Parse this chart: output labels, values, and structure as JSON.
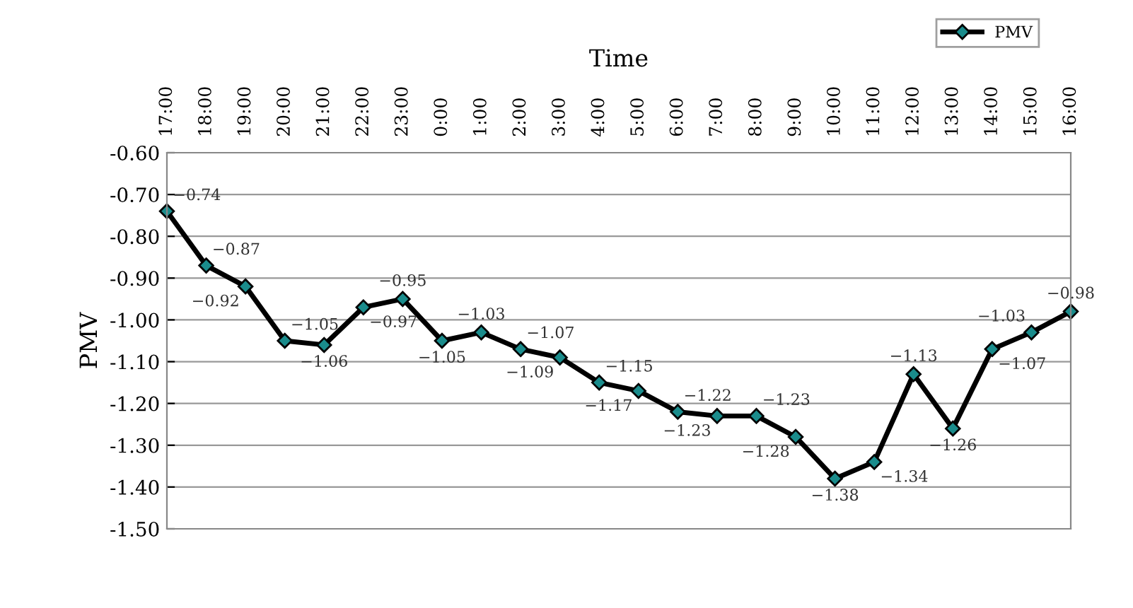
{
  "chart_data": {
    "type": "line",
    "xlabel": "Time",
    "ylabel": "PMV",
    "categories": [
      "17:00",
      "18:00",
      "19:00",
      "20:00",
      "21:00",
      "22:00",
      "23:00",
      "0:00",
      "1:00",
      "2:00",
      "3:00",
      "4:00",
      "5:00",
      "6:00",
      "7:00",
      "8:00",
      "9:00",
      "10:00",
      "11:00",
      "12:00",
      "13:00",
      "14:00",
      "15:00",
      "16:00"
    ],
    "series": [
      {
        "name": "PMV",
        "color": "#000000",
        "values": [
          -0.74,
          -0.87,
          -0.92,
          -1.05,
          -1.06,
          -0.97,
          -0.95,
          -1.05,
          -1.03,
          -1.07,
          -1.09,
          -1.15,
          -1.17,
          -1.22,
          -1.23,
          -1.23,
          -1.28,
          -1.38,
          -1.34,
          -1.13,
          -1.26,
          -1.07,
          -1.03,
          -0.98
        ]
      }
    ],
    "ylim": [
      -1.5,
      -0.6
    ],
    "yticks": [
      {
        "value": -1.5,
        "label": "-1.50"
      },
      {
        "value": -1.4,
        "label": "-1.40"
      },
      {
        "value": -1.3,
        "label": "-1.30"
      },
      {
        "value": -1.2,
        "label": "-1.20"
      },
      {
        "value": -1.1,
        "label": "-1.10"
      },
      {
        "value": -1.0,
        "label": "-1.00"
      },
      {
        "value": -0.9,
        "label": "-0.90"
      },
      {
        "value": -0.8,
        "label": "-0.80"
      },
      {
        "value": -0.7,
        "label": "-0.70"
      },
      {
        "value": -0.6,
        "label": "-0.60"
      }
    ],
    "grid": "y",
    "legend": "top right",
    "marker": "diamond",
    "line_style": "solid",
    "data_labels": true
  }
}
